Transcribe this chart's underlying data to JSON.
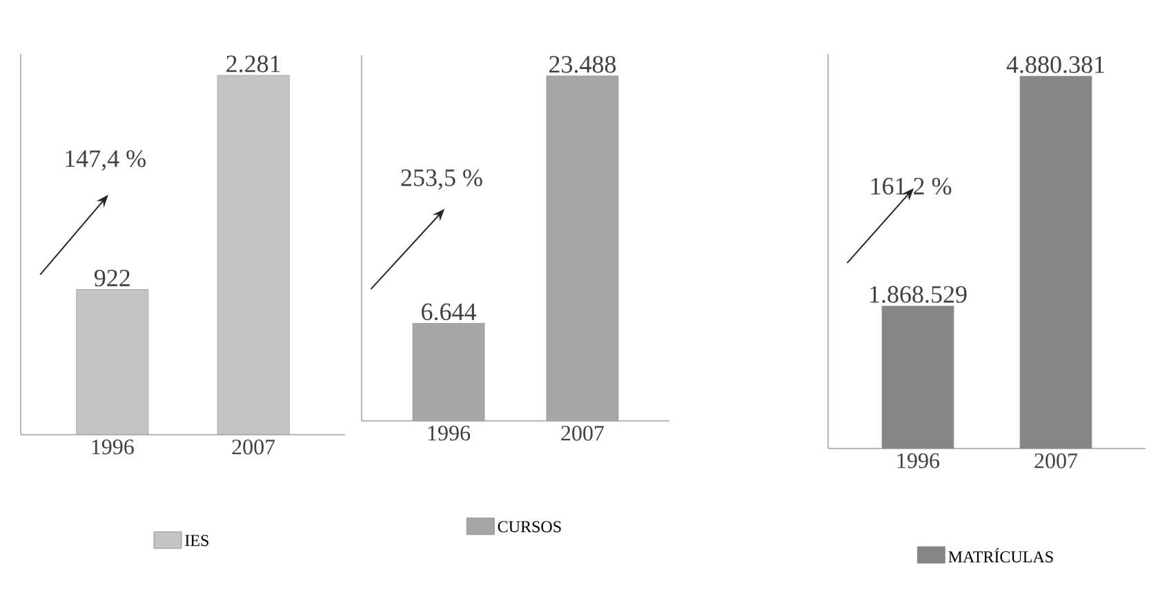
{
  "chart_data": [
    {
      "type": "bar",
      "categories": [
        "1996",
        "2007"
      ],
      "series": [
        {
          "name": "IES",
          "color": "#c4c4c4",
          "values": [
            922,
            2281
          ],
          "value_labels": [
            "922",
            "2.281"
          ]
        }
      ],
      "annotations": [
        "147,4 %"
      ],
      "legend": "bottom",
      "tick_labels": "x"
    },
    {
      "type": "bar",
      "categories": [
        "1996",
        "2007"
      ],
      "series": [
        {
          "name": "CURSOS",
          "color": "#a6a6a6",
          "values": [
            6644,
            23488
          ],
          "value_labels": [
            "6.644",
            "23.488"
          ]
        }
      ],
      "annotations": [
        "253,5 %"
      ],
      "legend": "bottom",
      "tick_labels": "x"
    },
    {
      "type": "bar",
      "categories": [
        "1996",
        "2007"
      ],
      "series": [
        {
          "name": "MATRÍCULAS",
          "color": "#858585",
          "values": [
            1868529,
            4880381
          ],
          "value_labels": [
            "1.868.529",
            "4.880.381"
          ]
        }
      ],
      "annotations": [
        "161,2 %"
      ],
      "legend": "bottom",
      "tick_labels": "x"
    }
  ]
}
